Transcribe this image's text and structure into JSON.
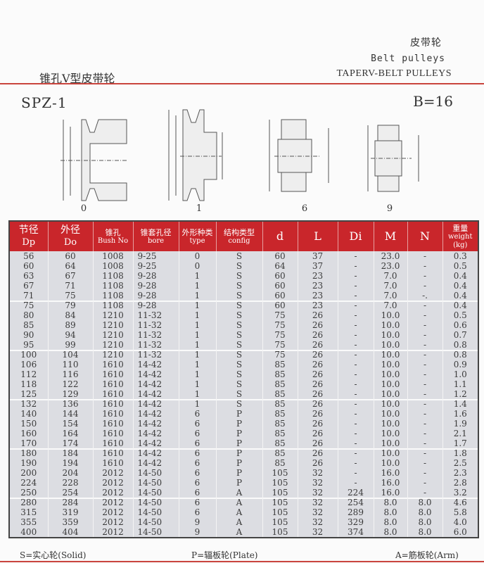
{
  "header": {
    "cn": "皮带轮",
    "en": "Belt pulleys",
    "en_upper": "TAPERV-BELT PULLEYS",
    "left_cn": "锥孔V型皮带轮"
  },
  "model": "SPZ-1",
  "b_value": "B=16",
  "figures": [
    {
      "label": "0"
    },
    {
      "label": "1"
    },
    {
      "label": "6"
    },
    {
      "label": "9"
    }
  ],
  "table": {
    "headers": [
      {
        "cn": "节径",
        "en": "Dp"
      },
      {
        "cn": "外径",
        "en": "Do"
      },
      {
        "cn": "锥孔",
        "en": "Bush No"
      },
      {
        "cn": "锥套孔径",
        "en": "bore"
      },
      {
        "cn": "外形种类",
        "en": "type"
      },
      {
        "cn": "结构类型",
        "en": "config"
      },
      {
        "cn": "",
        "en": "d"
      },
      {
        "cn": "",
        "en": "L"
      },
      {
        "cn": "",
        "en": "Di"
      },
      {
        "cn": "",
        "en": "M"
      },
      {
        "cn": "",
        "en": "N"
      },
      {
        "cn": "重量",
        "en": "weight (kg)"
      }
    ],
    "rows": [
      [
        "56",
        "60",
        "1008",
        "9-25",
        "0",
        "S",
        "60",
        "37",
        "-",
        "23.0",
        "-",
        "0.3"
      ],
      [
        "60",
        "64",
        "1008",
        "9-25",
        "0",
        "S",
        "64",
        "37",
        "-",
        "23.0",
        "-",
        "0.5"
      ],
      [
        "63",
        "67",
        "1108",
        "9-28",
        "1",
        "S",
        "60",
        "23",
        "-",
        "7.0",
        "-",
        "0.4"
      ],
      [
        "67",
        "71",
        "1108",
        "9-28",
        "1",
        "S",
        "60",
        "23",
        "-",
        "7.0",
        "-",
        "0.4"
      ],
      [
        "71",
        "75",
        "1108",
        "9-28",
        "1",
        "S",
        "60",
        "23",
        "-",
        "7.0",
        "-.",
        "0.4"
      ],
      [
        "75",
        "79",
        "1108",
        "9-28",
        "1",
        "S",
        "60",
        "23",
        "-",
        "7.0",
        "-",
        "0.4"
      ],
      [
        "80",
        "84",
        "1210",
        "11-32",
        "1",
        "S",
        "75",
        "26",
        "-",
        "10.0",
        "-",
        "0.5"
      ],
      [
        "85",
        "89",
        "1210",
        "11-32",
        "1",
        "S",
        "75",
        "26",
        "-",
        "10.0",
        "-",
        "0.6"
      ],
      [
        "90",
        "94",
        "1210",
        "11-32",
        "1",
        "S",
        "75",
        "26",
        "-",
        "10.0",
        "-",
        "0.7"
      ],
      [
        "95",
        "99",
        "1210",
        "11-32",
        "1",
        "S",
        "75",
        "26",
        "-",
        "10.0",
        "-",
        "0.8"
      ],
      [
        "100",
        "104",
        "1210",
        "11-32",
        "1",
        "S",
        "75",
        "26",
        "-",
        "10.0",
        "-",
        "0.8"
      ],
      [
        "106",
        "110",
        "1610",
        "14-42",
        "1",
        "S",
        "85",
        "26",
        "-",
        "10.0",
        "-",
        "0.9"
      ],
      [
        "112",
        "116",
        "1610",
        "14-42",
        "1",
        "S",
        "85",
        "26",
        "-",
        "10.0",
        "-",
        "1.0"
      ],
      [
        "118",
        "122",
        "1610",
        "14-42",
        "1",
        "S",
        "85",
        "26",
        "-",
        "10.0",
        "-",
        "1.1"
      ],
      [
        "125",
        "129",
        "1610",
        "14-42",
        "1",
        "S",
        "85",
        "26",
        "-",
        "10.0",
        "-",
        "1.2"
      ],
      [
        "132",
        "136",
        "1610",
        "14-42",
        "1",
        "S",
        "85",
        "26",
        "-",
        "10.0",
        "-",
        "1.4"
      ],
      [
        "140",
        "144",
        "1610",
        "14-42",
        "6",
        "P",
        "85",
        "26",
        "-",
        "10.0",
        "-",
        "1.6"
      ],
      [
        "150",
        "154",
        "1610",
        "14-42",
        "6",
        "P",
        "85",
        "26",
        "-",
        "10.0",
        "-",
        "1.9"
      ],
      [
        "160",
        "164",
        "1610",
        "14-42",
        "6",
        "P",
        "85",
        "26",
        "-",
        "10.0",
        "-",
        "2.1"
      ],
      [
        "170",
        "174",
        "1610",
        "14-42",
        "6",
        "P",
        "85",
        "26",
        "-",
        "10.0",
        "-",
        "1.7"
      ],
      [
        "180",
        "184",
        "1610",
        "14-42",
        "6",
        "P",
        "85",
        "26",
        "-",
        "10.0",
        "-",
        "1.8"
      ],
      [
        "190",
        "194",
        "1610",
        "14-42",
        "6",
        "P",
        "85",
        "26",
        "-",
        "10.0",
        "-",
        "2.5"
      ],
      [
        "200",
        "204",
        "2012",
        "14-50",
        "6",
        "P",
        "105",
        "32",
        "-",
        "16.0",
        "-",
        "2.3"
      ],
      [
        "224",
        "228",
        "2012",
        "14-50",
        "6",
        "P",
        "105",
        "32",
        "-",
        "16.0",
        "-",
        "2.8"
      ],
      [
        "250",
        "254",
        "2012",
        "14-50",
        "6",
        "A",
        "105",
        "32",
        "224",
        "16.0",
        "-",
        "3.2"
      ],
      [
        "280",
        "284",
        "2012",
        "14-50",
        "6",
        "A",
        "105",
        "32",
        "254",
        "8.0",
        "8.0",
        "4.6"
      ],
      [
        "315",
        "319",
        "2012",
        "14-50",
        "6",
        "A",
        "105",
        "32",
        "289",
        "8.0",
        "8.0",
        "5.8"
      ],
      [
        "355",
        "359",
        "2012",
        "14-50",
        "9",
        "A",
        "105",
        "32",
        "329",
        "8.0",
        "8.0",
        "4.0"
      ],
      [
        "400",
        "404",
        "2012",
        "14-50",
        "9",
        "A",
        "105",
        "32",
        "374",
        "8.0",
        "8.0",
        "6.0"
      ]
    ]
  },
  "legend": {
    "s": "S=实心轮(Solid)",
    "p": "P=辐板轮(Plate)",
    "a": "A=筋板轮(Arm)"
  },
  "colors": {
    "header_red": "#c9262b",
    "row_gray": "#dcdde2",
    "rule_red": "#c9443d"
  }
}
